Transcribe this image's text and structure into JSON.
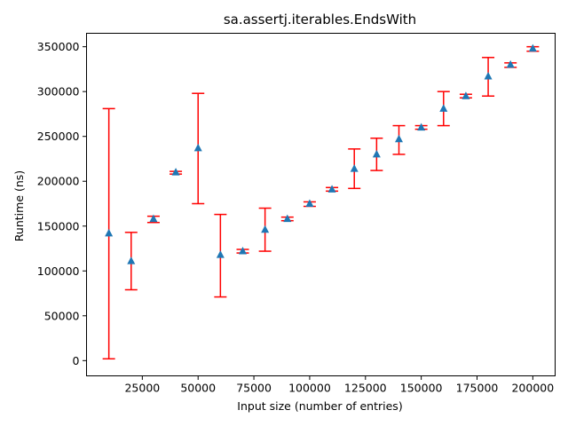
{
  "chart_data": {
    "type": "scatter",
    "title": "sa.assertj.iterables.EndsWith",
    "xlabel": "Input size (number of entries)",
    "ylabel": "Runtime (ns)",
    "xlim": [
      0,
      210000
    ],
    "ylim": [
      -17000,
      365000
    ],
    "xticks": [
      25000,
      50000,
      75000,
      100000,
      125000,
      150000,
      175000,
      200000
    ],
    "xtick_labels": [
      "25000",
      "50000",
      "75000",
      "100000",
      "125000",
      "150000",
      "175000",
      "200000"
    ],
    "yticks": [
      0,
      50000,
      100000,
      150000,
      200000,
      250000,
      300000,
      350000
    ],
    "ytick_labels": [
      "0",
      "50000",
      "100000",
      "150000",
      "200000",
      "250000",
      "300000",
      "350000"
    ],
    "grid": false,
    "marker_color": "#1f77b4",
    "errorbar_color": "#ff0000",
    "series": [
      {
        "x": [
          10000,
          20000,
          30000,
          40000,
          50000,
          60000,
          70000,
          80000,
          90000,
          100000,
          110000,
          120000,
          130000,
          140000,
          150000,
          160000,
          170000,
          180000,
          190000,
          200000
        ],
        "y": [
          142000,
          111000,
          158000,
          210000,
          237000,
          118000,
          122000,
          146000,
          158000,
          175000,
          191000,
          214000,
          230000,
          247000,
          260000,
          281000,
          295000,
          317000,
          330000,
          348000
        ],
        "err_low": [
          2000,
          79000,
          154000,
          208000,
          175000,
          71000,
          120000,
          122000,
          156000,
          172000,
          189000,
          192000,
          212000,
          230000,
          258000,
          262000,
          293000,
          295000,
          327000,
          345000
        ],
        "err_high": [
          281000,
          143000,
          161000,
          211000,
          298000,
          163000,
          124000,
          170000,
          160000,
          177000,
          193000,
          236000,
          248000,
          262000,
          262000,
          300000,
          297000,
          338000,
          332000,
          350000
        ]
      }
    ]
  }
}
